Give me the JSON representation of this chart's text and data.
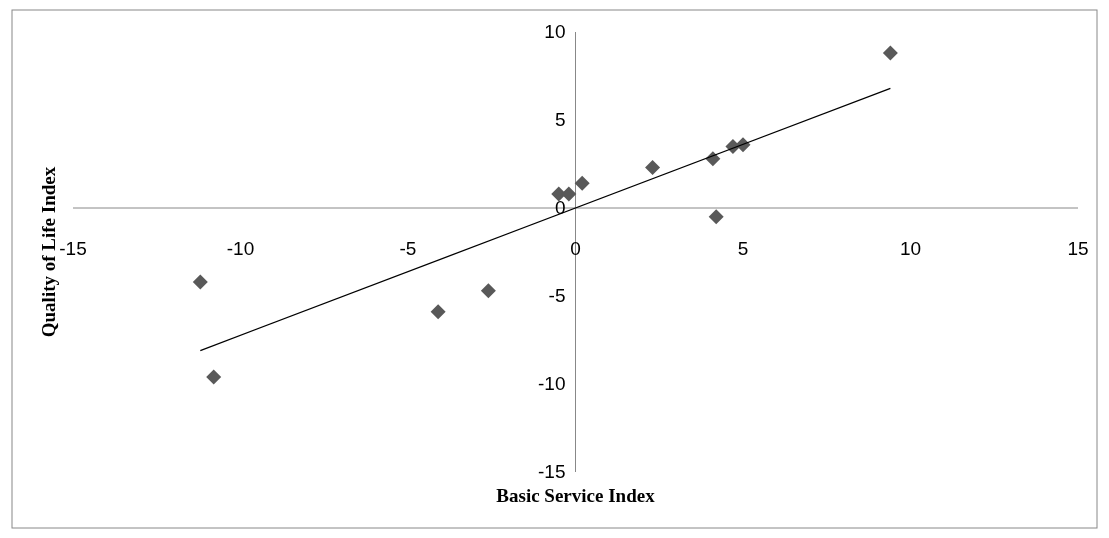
{
  "chart_data": {
    "type": "scatter",
    "xlabel": "Basic Service Index",
    "ylabel": "Quality of Life Index",
    "xlim": [
      -15,
      15
    ],
    "ylim": [
      -15,
      10
    ],
    "xticks": [
      -15,
      -10,
      -5,
      0,
      5,
      10,
      15
    ],
    "yticks": [
      -15,
      -10,
      -5,
      0,
      5,
      10
    ],
    "grid": false,
    "legend": false,
    "marker": "diamond",
    "series": [
      {
        "color": "#595959",
        "x": [
          -11.2,
          -10.8,
          -4.1,
          -2.6,
          -0.5,
          -0.2,
          0.2,
          2.3,
          4.1,
          4.2,
          4.7,
          5.0,
          9.4
        ],
        "values": [
          -4.2,
          -9.6,
          -5.9,
          -4.7,
          0.8,
          0.8,
          1.4,
          2.3,
          2.8,
          -0.5,
          3.5,
          3.6,
          8.8
        ]
      },
      {
        "type": "line",
        "marker": "none",
        "color": "#000000",
        "x": [
          -11.2,
          9.4
        ],
        "values": [
          -8.1,
          6.8
        ]
      }
    ]
  }
}
